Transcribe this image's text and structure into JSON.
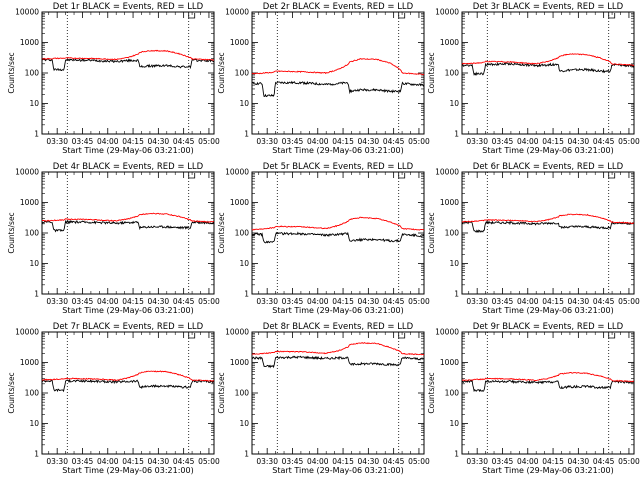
{
  "figure": {
    "xlabel": "Start Time (29-May-06 03:21:00)",
    "ylabel": "Counts/sec",
    "x_ticks": [
      "03:30",
      "03:45",
      "04:00",
      "04:15",
      "04:30",
      "04:45",
      "05:00"
    ],
    "y_ticks": [
      "1",
      "10",
      "100",
      "1000",
      "10000"
    ],
    "colors": {
      "events": "#000000",
      "lld": "#ff0000",
      "axes": "#000000"
    }
  },
  "chart_data": [
    {
      "type": "line",
      "title": "Det 1r BLACK = Events, RED = LLD",
      "xlabel": "Start Time (29-May-06 03:21:00)",
      "ylabel": "Counts/sec",
      "ylim": [
        1,
        10000
      ],
      "yscale": "log",
      "xlim": [
        "03:21",
        "05:03"
      ],
      "grid": "none",
      "vlines": [
        "03:36",
        "04:48"
      ],
      "x": [
        "03:21",
        "03:27",
        "03:28",
        "03:34",
        "03:35",
        "03:50",
        "04:05",
        "04:12",
        "04:18",
        "04:19",
        "04:25",
        "04:35",
        "04:43",
        "04:49",
        "04:50",
        "05:03"
      ],
      "series": [
        {
          "name": "Events",
          "values": [
            270,
            270,
            130,
            130,
            270,
            260,
            240,
            255,
            260,
            160,
            170,
            175,
            160,
            160,
            260,
            250
          ]
        },
        {
          "name": "LLD",
          "values": [
            290,
            295,
            300,
            305,
            310,
            300,
            280,
            320,
            420,
            480,
            540,
            530,
            420,
            320,
            290,
            270
          ]
        }
      ]
    },
    {
      "type": "line",
      "title": "Det 2r BLACK = Events, RED = LLD",
      "xlabel": "Start Time (29-May-06 03:21:00)",
      "ylabel": "Counts/sec",
      "ylim": [
        1,
        10000
      ],
      "yscale": "log",
      "xlim": [
        "03:21",
        "05:03"
      ],
      "grid": "none",
      "vlines": [
        "03:36",
        "04:48"
      ],
      "x": [
        "03:21",
        "03:27",
        "03:28",
        "03:34",
        "03:35",
        "03:50",
        "04:05",
        "04:12",
        "04:18",
        "04:19",
        "04:25",
        "04:35",
        "04:43",
        "04:49",
        "04:50",
        "05:03"
      ],
      "series": [
        {
          "name": "Events",
          "values": [
            45,
            45,
            18,
            18,
            48,
            48,
            42,
            45,
            48,
            25,
            28,
            28,
            25,
            25,
            45,
            40
          ]
        },
        {
          "name": "LLD",
          "values": [
            95,
            98,
            100,
            105,
            115,
            110,
            100,
            130,
            190,
            230,
            290,
            280,
            210,
            130,
            100,
            90
          ]
        }
      ]
    },
    {
      "type": "line",
      "title": "Det 3r BLACK = Events, RED = LLD",
      "xlabel": "Start Time (29-May-06 03:21:00)",
      "ylabel": "Counts/sec",
      "ylim": [
        1,
        10000
      ],
      "yscale": "log",
      "xlim": [
        "03:21",
        "05:03"
      ],
      "grid": "none",
      "vlines": [
        "03:36",
        "04:48"
      ],
      "x": [
        "03:21",
        "03:27",
        "03:28",
        "03:34",
        "03:35",
        "03:50",
        "04:05",
        "04:12",
        "04:18",
        "04:19",
        "04:25",
        "04:35",
        "04:43",
        "04:49",
        "04:50",
        "05:03"
      ],
      "series": [
        {
          "name": "Events",
          "values": [
            180,
            180,
            95,
            95,
            190,
            200,
            175,
            185,
            195,
            115,
            125,
            130,
            115,
            115,
            185,
            170
          ]
        },
        {
          "name": "LLD",
          "values": [
            200,
            205,
            210,
            220,
            240,
            230,
            200,
            240,
            310,
            360,
            420,
            400,
            310,
            230,
            200,
            180
          ]
        }
      ]
    },
    {
      "type": "line",
      "title": "Det 4r BLACK = Events, RED = LLD",
      "xlabel": "Start Time (29-May-06 03:21:00)",
      "ylabel": "Counts/sec",
      "ylim": [
        1,
        10000
      ],
      "yscale": "log",
      "xlim": [
        "03:21",
        "05:03"
      ],
      "grid": "none",
      "vlines": [
        "03:36",
        "04:48"
      ],
      "x": [
        "03:21",
        "03:27",
        "03:28",
        "03:34",
        "03:35",
        "03:50",
        "04:05",
        "04:12",
        "04:18",
        "04:19",
        "04:25",
        "04:35",
        "04:43",
        "04:49",
        "04:50",
        "05:03"
      ],
      "series": [
        {
          "name": "Events",
          "values": [
            230,
            230,
            120,
            120,
            230,
            225,
            210,
            220,
            225,
            150,
            160,
            160,
            150,
            150,
            225,
            215
          ]
        },
        {
          "name": "LLD",
          "values": [
            250,
            255,
            260,
            270,
            285,
            275,
            250,
            290,
            360,
            400,
            440,
            420,
            340,
            270,
            245,
            230
          ]
        }
      ]
    },
    {
      "type": "line",
      "title": "Det 5r BLACK = Events, RED = LLD",
      "xlabel": "Start Time (29-May-06 03:21:00)",
      "ylabel": "Counts/sec",
      "ylim": [
        1,
        10000
      ],
      "yscale": "log",
      "xlim": [
        "03:21",
        "05:03"
      ],
      "grid": "none",
      "vlines": [
        "03:36",
        "04:48"
      ],
      "x": [
        "03:21",
        "03:27",
        "03:28",
        "03:34",
        "03:35",
        "03:50",
        "04:05",
        "04:12",
        "04:18",
        "04:19",
        "04:25",
        "04:35",
        "04:43",
        "04:49",
        "04:50",
        "05:03"
      ],
      "series": [
        {
          "name": "Events",
          "values": [
            90,
            90,
            50,
            50,
            95,
            95,
            85,
            90,
            95,
            55,
            60,
            62,
            55,
            55,
            90,
            80
          ]
        },
        {
          "name": "LLD",
          "values": [
            130,
            135,
            140,
            150,
            165,
            160,
            140,
            175,
            240,
            280,
            320,
            300,
            230,
            170,
            140,
            125
          ]
        }
      ]
    },
    {
      "type": "line",
      "title": "Det 6r BLACK = Events, RED = LLD",
      "xlabel": "Start Time (29-May-06 03:21:00)",
      "ylabel": "Counts/sec",
      "ylim": [
        1,
        10000
      ],
      "yscale": "log",
      "xlim": [
        "03:21",
        "05:03"
      ],
      "grid": "none",
      "vlines": [
        "03:36",
        "04:48"
      ],
      "x": [
        "03:21",
        "03:27",
        "03:28",
        "03:34",
        "03:35",
        "03:50",
        "04:05",
        "04:12",
        "04:18",
        "04:19",
        "04:25",
        "04:35",
        "04:43",
        "04:49",
        "04:50",
        "05:03"
      ],
      "series": [
        {
          "name": "Events",
          "values": [
            220,
            220,
            115,
            115,
            220,
            215,
            200,
            210,
            215,
            150,
            160,
            160,
            150,
            150,
            215,
            205
          ]
        },
        {
          "name": "LLD",
          "values": [
            235,
            240,
            245,
            255,
            270,
            260,
            235,
            270,
            330,
            370,
            410,
            395,
            320,
            250,
            225,
            210
          ]
        }
      ]
    },
    {
      "type": "line",
      "title": "Det 7r BLACK = Events, RED = LLD",
      "xlabel": "Start Time (29-May-06 03:21:00)",
      "ylabel": "Counts/sec",
      "ylim": [
        1,
        10000
      ],
      "yscale": "log",
      "xlim": [
        "03:21",
        "05:03"
      ],
      "grid": "none",
      "vlines": [
        "03:36",
        "04:48"
      ],
      "x": [
        "03:21",
        "03:27",
        "03:28",
        "03:34",
        "03:35",
        "03:50",
        "04:05",
        "04:12",
        "04:18",
        "04:19",
        "04:25",
        "04:35",
        "04:43",
        "04:49",
        "04:50",
        "05:03"
      ],
      "series": [
        {
          "name": "Events",
          "values": [
            250,
            250,
            125,
            125,
            250,
            245,
            230,
            240,
            245,
            155,
            165,
            170,
            155,
            155,
            245,
            235
          ]
        },
        {
          "name": "LLD",
          "values": [
            270,
            275,
            280,
            290,
            300,
            290,
            265,
            310,
            410,
            460,
            520,
            500,
            390,
            300,
            265,
            250
          ]
        }
      ]
    },
    {
      "type": "line",
      "title": "Det 8r BLACK = Events, RED = LLD",
      "xlabel": "Start Time (29-May-06 03:21:00)",
      "ylabel": "Counts/sec",
      "ylim": [
        1,
        10000
      ],
      "yscale": "log",
      "xlim": [
        "03:21",
        "05:03"
      ],
      "grid": "none",
      "vlines": [
        "03:36",
        "04:48"
      ],
      "x": [
        "03:21",
        "03:27",
        "03:28",
        "03:34",
        "03:35",
        "03:50",
        "04:05",
        "04:12",
        "04:18",
        "04:19",
        "04:25",
        "04:35",
        "04:43",
        "04:49",
        "04:50",
        "05:03"
      ],
      "series": [
        {
          "name": "Events",
          "values": [
            1400,
            1400,
            750,
            750,
            1450,
            1500,
            1350,
            1400,
            1450,
            850,
            900,
            920,
            850,
            850,
            1400,
            1300
          ]
        },
        {
          "name": "LLD",
          "values": [
            1900,
            1950,
            2000,
            2100,
            2300,
            2250,
            2000,
            2400,
            3200,
            3800,
            4400,
            4200,
            3100,
            2300,
            1950,
            1800
          ]
        }
      ]
    },
    {
      "type": "line",
      "title": "Det 9r BLACK = Events, RED = LLD",
      "xlabel": "Start Time (29-May-06 03:21:00)",
      "ylabel": "Counts/sec",
      "ylim": [
        1,
        10000
      ],
      "yscale": "log",
      "xlim": [
        "03:21",
        "05:03"
      ],
      "grid": "none",
      "vlines": [
        "03:36",
        "04:48"
      ],
      "x": [
        "03:21",
        "03:27",
        "03:28",
        "03:34",
        "03:35",
        "03:50",
        "04:05",
        "04:12",
        "04:18",
        "04:19",
        "04:25",
        "04:35",
        "04:43",
        "04:49",
        "04:50",
        "05:03"
      ],
      "series": [
        {
          "name": "Events",
          "values": [
            240,
            240,
            120,
            120,
            240,
            235,
            220,
            230,
            235,
            150,
            160,
            165,
            150,
            150,
            235,
            225
          ]
        },
        {
          "name": "LLD",
          "values": [
            265,
            270,
            275,
            285,
            300,
            290,
            260,
            300,
            380,
            420,
            460,
            445,
            360,
            285,
            255,
            240
          ]
        }
      ]
    }
  ]
}
